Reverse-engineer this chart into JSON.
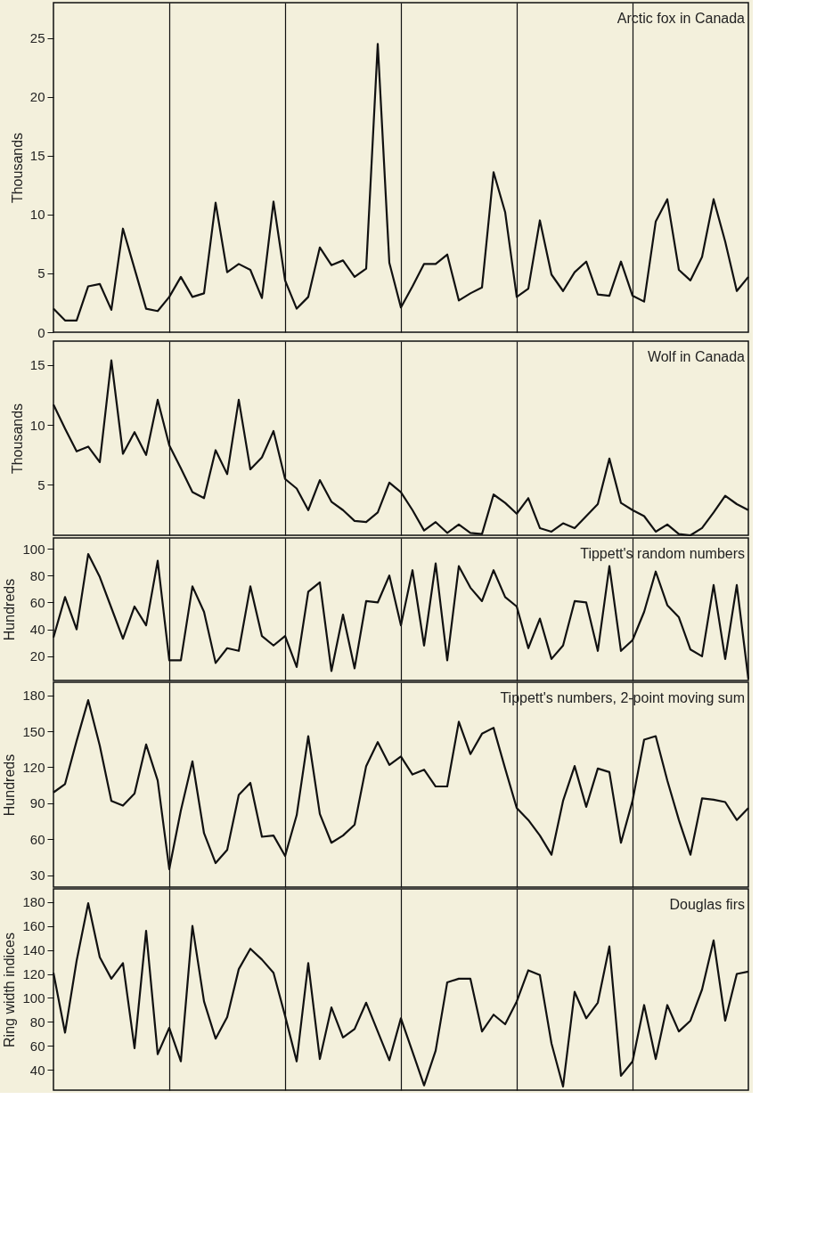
{
  "chart_data": [
    {
      "type": "line",
      "title": "Arctic fox in Canada",
      "ylabel": "Thousands",
      "color": "#111111",
      "grid": "x",
      "categories": [
        null,
        null,
        null,
        null,
        null,
        null,
        null,
        null,
        null,
        null,
        null,
        null,
        null,
        null,
        null,
        null,
        null,
        null,
        null,
        null,
        null,
        null,
        null,
        null,
        null,
        null,
        null,
        null,
        null,
        null,
        null,
        null,
        null,
        null,
        null,
        null,
        null,
        null,
        null,
        null,
        null,
        null,
        null,
        null,
        null,
        null,
        null,
        null,
        null,
        null,
        null,
        null,
        null,
        null,
        null,
        null,
        null,
        null,
        null,
        null,
        null
      ],
      "values": [
        2.0,
        1.0,
        1.0,
        3.9,
        4.1,
        1.9,
        8.8,
        5.4,
        2.0,
        1.8,
        3.0,
        4.7,
        3.0,
        3.3,
        11.0,
        5.1,
        5.8,
        5.3,
        2.9,
        11.1,
        4.4,
        2.0,
        3.0,
        7.2,
        5.7,
        6.1,
        4.7,
        5.4,
        24.5,
        5.9,
        2.1,
        3.9,
        5.8,
        5.8,
        6.6,
        2.7,
        3.3,
        3.8,
        13.6,
        10.2,
        3.0,
        3.7,
        9.5,
        4.9,
        3.5,
        5.1,
        6.0,
        3.2,
        3.1,
        6.0,
        3.1,
        2.6,
        9.4,
        11.3,
        5.3,
        4.4,
        6.4,
        11.3,
        7.7,
        3.5,
        4.7
      ],
      "ylim": [
        0,
        28
      ],
      "yticks": [
        0,
        5,
        10,
        15,
        20,
        25
      ]
    },
    {
      "type": "line",
      "title": "Wolf in Canada",
      "ylabel": "Thousands",
      "color": "#111111",
      "grid": "x",
      "categories": [
        null,
        null,
        null,
        null,
        null,
        null,
        null,
        null,
        null,
        null,
        null,
        null,
        null,
        null,
        null,
        null,
        null,
        null,
        null,
        null,
        null,
        null,
        null,
        null,
        null,
        null,
        null,
        null,
        null,
        null,
        null,
        null,
        null,
        null,
        null,
        null,
        null,
        null,
        null,
        null,
        null,
        null,
        null,
        null,
        null,
        null,
        null,
        null,
        null,
        null,
        null,
        null,
        null,
        null,
        null,
        null,
        null,
        null,
        null,
        null,
        null
      ],
      "values": [
        11.7,
        9.7,
        7.8,
        8.2,
        6.9,
        15.4,
        7.6,
        9.4,
        7.5,
        12.1,
        8.3,
        6.4,
        4.4,
        3.9,
        7.9,
        5.9,
        12.1,
        6.3,
        7.3,
        9.5,
        5.5,
        4.7,
        2.9,
        5.4,
        3.6,
        2.9,
        2.0,
        1.9,
        2.7,
        5.2,
        4.4,
        2.9,
        1.2,
        1.9,
        1.0,
        1.7,
        1.0,
        0.9,
        4.2,
        3.5,
        2.6,
        3.9,
        1.4,
        1.1,
        1.8,
        1.4,
        2.4,
        3.4,
        7.2,
        3.5,
        2.9,
        2.4,
        1.1,
        1.7,
        0.9,
        0.8,
        1.4,
        2.7,
        4.1,
        3.4,
        2.9
      ],
      "ylim": [
        0.8,
        17
      ],
      "yticks": [
        5,
        10,
        15
      ]
    },
    {
      "type": "line",
      "title": "Tippett's random numbers",
      "ylabel": "Hundreds",
      "color": "#111111",
      "grid": "x",
      "categories": [
        null,
        null,
        null,
        null,
        null,
        null,
        null,
        null,
        null,
        null,
        null,
        null,
        null,
        null,
        null,
        null,
        null,
        null,
        null,
        null,
        null,
        null,
        null,
        null,
        null,
        null,
        null,
        null,
        null,
        null,
        null,
        null,
        null,
        null,
        null,
        null,
        null,
        null,
        null,
        null,
        null,
        null,
        null,
        null,
        null,
        null,
        null,
        null,
        null,
        null,
        null,
        null,
        null,
        null,
        null,
        null,
        null,
        null,
        null,
        null,
        null
      ],
      "values": [
        34,
        64,
        40,
        96,
        79,
        56,
        33,
        57,
        43,
        91,
        17,
        17,
        72,
        53,
        15,
        26,
        24,
        72,
        35,
        28,
        35,
        12,
        68,
        75,
        9,
        51,
        11,
        61,
        60,
        80,
        43,
        84,
        28,
        89,
        17,
        87,
        71,
        61,
        84,
        64,
        57,
        26,
        48,
        18,
        28,
        61,
        60,
        24,
        87,
        24,
        32,
        53,
        83,
        58,
        49,
        25,
        20,
        73,
        18,
        73,
        3
      ],
      "ylim": [
        2,
        108
      ],
      "yticks": [
        20,
        40,
        60,
        80,
        100
      ]
    },
    {
      "type": "line",
      "title": "Tippett's numbers, 2-point moving sum",
      "ylabel": "Hundreds",
      "color": "#111111",
      "grid": "x",
      "categories": [
        null,
        null,
        null,
        null,
        null,
        null,
        null,
        null,
        null,
        null,
        null,
        null,
        null,
        null,
        null,
        null,
        null,
        null,
        null,
        null,
        null,
        null,
        null,
        null,
        null,
        null,
        null,
        null,
        null,
        null,
        null,
        null,
        null,
        null,
        null,
        null,
        null,
        null,
        null,
        null,
        null,
        null,
        null,
        null,
        null,
        null,
        null,
        null,
        null,
        null,
        null,
        null,
        null,
        null,
        null,
        null,
        null,
        null,
        null,
        null,
        null
      ],
      "values": [
        99,
        106,
        142,
        176,
        138,
        92,
        88,
        98,
        139,
        109,
        35,
        84,
        125,
        65,
        40,
        51,
        97,
        107,
        62,
        63,
        46,
        80,
        146,
        81,
        57,
        63,
        72,
        121,
        141,
        122,
        129,
        114,
        118,
        104,
        104,
        158,
        131,
        148,
        153,
        119,
        86,
        76,
        63,
        47,
        92,
        121,
        87,
        119,
        116,
        57,
        92,
        143,
        146,
        109,
        76,
        47,
        94,
        93,
        91,
        76,
        86
      ],
      "ylim": [
        20,
        191
      ],
      "yticks": [
        30,
        60,
        90,
        120,
        150,
        180
      ]
    },
    {
      "type": "line",
      "title": "Douglas firs",
      "ylabel": "Ring width indices",
      "color": "#111111",
      "grid": "x",
      "categories": [
        null,
        null,
        null,
        null,
        null,
        null,
        null,
        null,
        null,
        null,
        null,
        null,
        null,
        null,
        null,
        null,
        null,
        null,
        null,
        null,
        null,
        null,
        null,
        null,
        null,
        null,
        null,
        null,
        null,
        null,
        null,
        null,
        null,
        null,
        null,
        null,
        null,
        null,
        null,
        null,
        null,
        null,
        null,
        null,
        null,
        null,
        null,
        null,
        null,
        null,
        null,
        null,
        null,
        null,
        null,
        null,
        null,
        null,
        null,
        null,
        null
      ],
      "values": [
        121,
        71,
        131,
        179,
        134,
        116,
        129,
        58,
        156,
        53,
        75,
        47,
        160,
        97,
        66,
        84,
        124,
        141,
        132,
        121,
        85,
        47,
        129,
        49,
        92,
        67,
        74,
        96,
        72,
        48,
        83,
        55,
        27,
        56,
        113,
        116,
        116,
        72,
        86,
        78,
        97,
        123,
        119,
        62,
        26,
        105,
        83,
        96,
        143,
        35,
        47,
        94,
        49,
        94,
        72,
        81,
        107,
        148,
        81,
        120,
        122
      ],
      "ylim": [
        23,
        191
      ],
      "yticks": [
        40,
        60,
        80,
        100,
        120,
        140,
        160,
        180
      ]
    }
  ]
}
